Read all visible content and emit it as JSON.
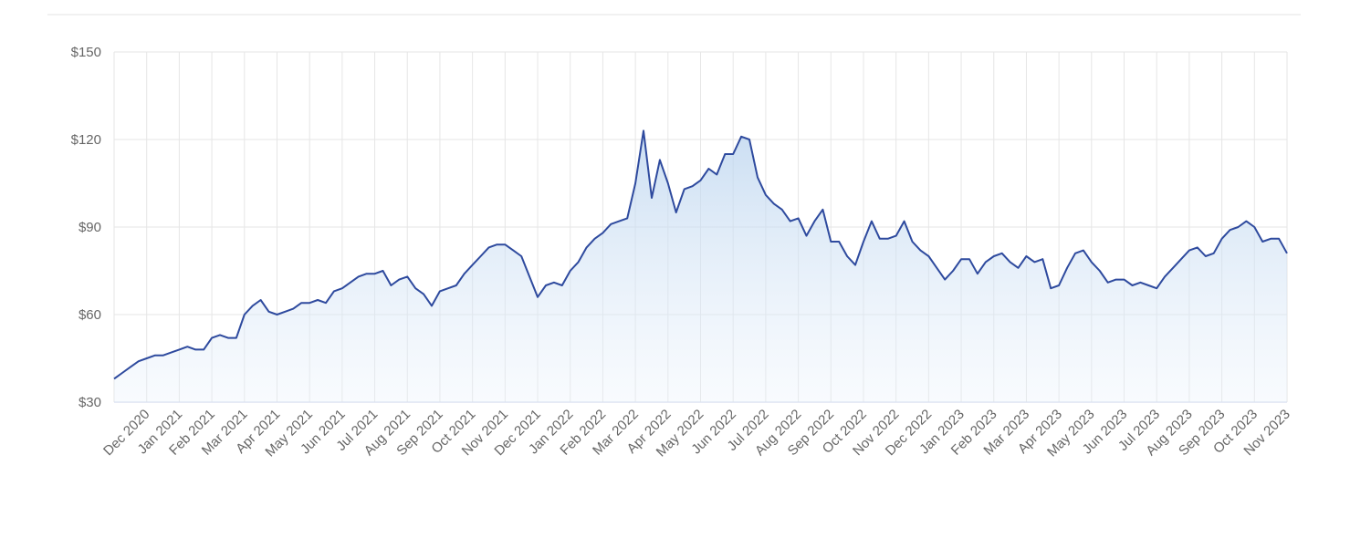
{
  "chart_data": {
    "type": "area-line",
    "color": "#2e4a9e",
    "grid": true,
    "xlim": [
      -1,
      35
    ],
    "ylim": [
      30,
      150
    ],
    "yticks": [
      {
        "value": 30,
        "label": "$30"
      },
      {
        "value": 60,
        "label": "$60"
      },
      {
        "value": 90,
        "label": "$90"
      },
      {
        "value": 120,
        "label": "$120"
      },
      {
        "value": 150,
        "label": "$150"
      }
    ],
    "xticks": [
      {
        "value": 0,
        "label": "Dec 2020"
      },
      {
        "value": 1,
        "label": "Jan 2021"
      },
      {
        "value": 2,
        "label": "Feb 2021"
      },
      {
        "value": 3,
        "label": "Mar 2021"
      },
      {
        "value": 4,
        "label": "Apr 2021"
      },
      {
        "value": 5,
        "label": "May 2021"
      },
      {
        "value": 6,
        "label": "Jun 2021"
      },
      {
        "value": 7,
        "label": "Jul 2021"
      },
      {
        "value": 8,
        "label": "Aug 2021"
      },
      {
        "value": 9,
        "label": "Sep 2021"
      },
      {
        "value": 10,
        "label": "Oct 2021"
      },
      {
        "value": 11,
        "label": "Nov 2021"
      },
      {
        "value": 12,
        "label": "Dec 2021"
      },
      {
        "value": 13,
        "label": "Jan 2022"
      },
      {
        "value": 14,
        "label": "Feb 2022"
      },
      {
        "value": 15,
        "label": "Mar 2022"
      },
      {
        "value": 16,
        "label": "Apr 2022"
      },
      {
        "value": 17,
        "label": "May 2022"
      },
      {
        "value": 18,
        "label": "Jun 2022"
      },
      {
        "value": 19,
        "label": "Jul 2022"
      },
      {
        "value": 20,
        "label": "Aug 2022"
      },
      {
        "value": 21,
        "label": "Sep 2022"
      },
      {
        "value": 22,
        "label": "Oct 2022"
      },
      {
        "value": 23,
        "label": "Nov 2022"
      },
      {
        "value": 24,
        "label": "Dec 2022"
      },
      {
        "value": 25,
        "label": "Jan 2023"
      },
      {
        "value": 26,
        "label": "Feb 2023"
      },
      {
        "value": 27,
        "label": "Mar 2023"
      },
      {
        "value": 28,
        "label": "Apr 2023"
      },
      {
        "value": 29,
        "label": "May 2023"
      },
      {
        "value": 30,
        "label": "Jun 2023"
      },
      {
        "value": 31,
        "label": "Jul 2023"
      },
      {
        "value": 32,
        "label": "Aug 2023"
      },
      {
        "value": 33,
        "label": "Sep 2023"
      },
      {
        "value": 34,
        "label": "Oct 2023"
      },
      {
        "value": 35,
        "label": "Nov 2023"
      }
    ],
    "x": [
      -1,
      -0.75,
      -0.5,
      -0.25,
      0,
      0.25,
      0.5,
      0.75,
      1,
      1.25,
      1.5,
      1.75,
      2,
      2.25,
      2.5,
      2.75,
      3,
      3.25,
      3.5,
      3.75,
      4,
      4.25,
      4.5,
      4.75,
      5,
      5.25,
      5.5,
      5.75,
      6,
      6.25,
      6.5,
      6.75,
      7,
      7.25,
      7.5,
      7.75,
      8,
      8.25,
      8.5,
      8.75,
      9,
      9.25,
      9.5,
      9.75,
      10,
      10.25,
      10.5,
      10.75,
      11,
      11.25,
      11.5,
      11.75,
      12,
      12.25,
      12.5,
      12.75,
      13,
      13.25,
      13.5,
      13.75,
      14,
      14.25,
      14.5,
      14.75,
      15,
      15.25,
      15.5,
      15.75,
      16,
      16.25,
      16.5,
      16.75,
      17,
      17.25,
      17.5,
      17.75,
      18,
      18.25,
      18.5,
      18.75,
      19,
      19.25,
      19.5,
      19.75,
      20,
      20.25,
      20.5,
      20.75,
      21,
      21.25,
      21.5,
      21.75,
      22,
      22.25,
      22.5,
      22.75,
      23,
      23.25,
      23.5,
      23.75,
      24,
      24.25,
      24.5,
      24.75,
      25,
      25.25,
      25.5,
      25.75,
      26,
      26.25,
      26.5,
      26.75,
      27,
      27.25,
      27.5,
      27.75,
      28,
      28.25,
      28.5,
      28.75,
      29,
      29.25,
      29.5,
      29.75,
      30,
      30.25,
      30.5,
      30.75,
      31,
      31.25,
      31.5,
      31.75,
      32,
      32.25,
      32.5,
      32.75,
      33,
      33.25,
      33.5,
      33.75,
      34,
      34.25,
      34.5,
      34.75,
      35
    ],
    "values": [
      38,
      40,
      42,
      44,
      45,
      46,
      46,
      47,
      48,
      49,
      48,
      48,
      52,
      53,
      52,
      52,
      60,
      63,
      65,
      61,
      60,
      61,
      62,
      64,
      64,
      65,
      64,
      68,
      69,
      71,
      73,
      74,
      74,
      75,
      70,
      72,
      73,
      69,
      67,
      63,
      68,
      69,
      70,
      74,
      77,
      80,
      83,
      84,
      84,
      82,
      80,
      73,
      66,
      70,
      71,
      70,
      75,
      78,
      83,
      86,
      88,
      91,
      92,
      93,
      105,
      123,
      100,
      113,
      105,
      95,
      103,
      104,
      106,
      110,
      108,
      115,
      115,
      121,
      120,
      107,
      101,
      98,
      96,
      92,
      93,
      87,
      92,
      96,
      85,
      85,
      80,
      77,
      85,
      92,
      86,
      86,
      87,
      92,
      85,
      82,
      80,
      76,
      72,
      75,
      79,
      79,
      74,
      78,
      80,
      81,
      78,
      76,
      80,
      78,
      79,
      69,
      70,
      76,
      81,
      82,
      78,
      75,
      71,
      72,
      72,
      70,
      71,
      70,
      69,
      73,
      76,
      79,
      82,
      83,
      80,
      81,
      86,
      89,
      90,
      92,
      90,
      85,
      86,
      86,
      81
    ]
  }
}
